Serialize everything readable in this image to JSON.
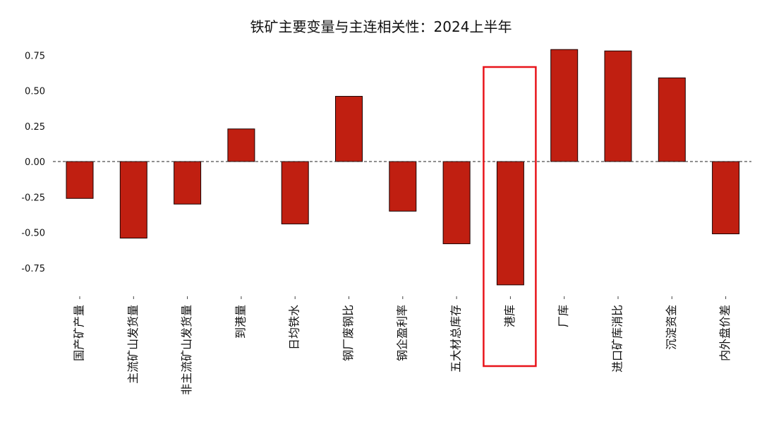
{
  "chart_data": {
    "type": "bar",
    "title": "铁矿主要变量与主连相关性：2024上半年",
    "xlabel": "",
    "ylabel": "",
    "ylim": [
      -0.9,
      0.85
    ],
    "yticks": [
      "0.75",
      "0.50",
      "0.25",
      "0.00",
      "-0.25",
      "-0.50",
      "-0.75"
    ],
    "ytick_values": [
      0.75,
      0.5,
      0.25,
      0.0,
      -0.25,
      -0.5,
      -0.75
    ],
    "categories": [
      "国产矿产量",
      "主流矿山发货量",
      "非主流矿山发货量",
      "到港量",
      "日均铁水",
      "钢厂废钢比",
      "钢企盈利率",
      "五大材总库存",
      "港库",
      "厂库",
      "进口矿库消比",
      "沉淀资金",
      "内外盘价差"
    ],
    "values": [
      -0.26,
      -0.54,
      -0.3,
      0.23,
      -0.44,
      0.46,
      -0.35,
      -0.58,
      -0.87,
      0.79,
      0.78,
      0.59,
      -0.51
    ],
    "bar_color": "#c01f11",
    "zero_line": "dashed",
    "grid": false,
    "highlight_category": "港库",
    "highlight_color": "#e8141b"
  }
}
